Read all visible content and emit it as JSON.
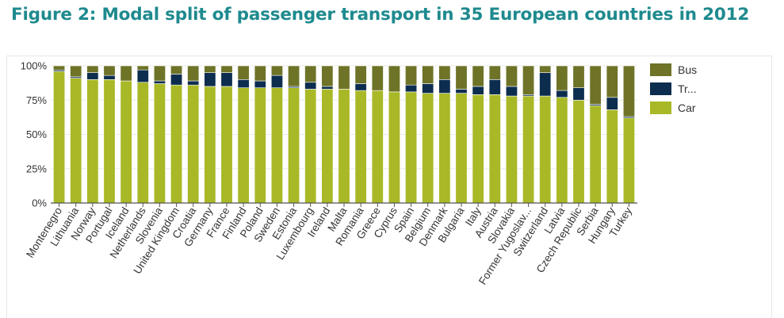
{
  "title": "Figure 2: Modal split of passenger transport in 35 European countries in 2012",
  "chart_data": {
    "type": "bar",
    "stacked": true,
    "categories": [
      "Montenegro",
      "Lithuania",
      "Norway",
      "Portugal",
      "Iceland",
      "Netherlands",
      "Slovenia",
      "United Kingdom",
      "Croatia",
      "Germany",
      "France",
      "Finland",
      "Poland",
      "Sweden",
      "Estonia",
      "Luxembourg",
      "Ireland",
      "Malta",
      "Romania",
      "Greece",
      "Cyprus",
      "Spain",
      "Belgium",
      "Denmark",
      "Bulgaria",
      "Italy",
      "Austria",
      "Slovakia",
      "Former Yugoslav...",
      "Switzerland",
      "Latvia",
      "Czech Republic",
      "Serbia",
      "Hungary",
      "Turkey"
    ],
    "series": [
      {
        "name": "Car",
        "color": "#a9b826",
        "values": [
          96,
          91,
          90,
          90,
          89,
          88,
          87,
          86,
          86,
          85,
          85,
          84,
          84,
          84,
          84,
          83,
          83,
          83,
          82,
          82,
          81,
          81,
          80,
          80,
          80,
          79,
          79,
          78,
          78,
          78,
          77,
          75,
          71,
          68,
          62
        ]
      },
      {
        "name": "Tr...",
        "color": "#0d2d4f",
        "values": [
          1,
          1,
          5,
          3,
          0,
          9,
          2,
          8,
          3,
          10,
          10,
          6,
          5,
          9,
          1,
          5,
          2,
          0,
          5,
          0,
          0,
          5,
          7,
          10,
          3,
          6,
          11,
          7,
          1,
          17,
          5,
          9,
          1,
          9,
          1
        ]
      },
      {
        "name": "Bus",
        "color": "#6e7327",
        "values": [
          3,
          8,
          5,
          7,
          11,
          3,
          11,
          6,
          11,
          5,
          5,
          10,
          11,
          7,
          15,
          12,
          15,
          17,
          13,
          18,
          19,
          14,
          13,
          10,
          17,
          15,
          10,
          15,
          21,
          5,
          18,
          16,
          28,
          23,
          37
        ]
      }
    ],
    "yticks": [
      "100%",
      "75%",
      "50%",
      "25%",
      "0%"
    ],
    "ylim": [
      0,
      100
    ],
    "legend": {
      "position": "right",
      "items": [
        "Bus",
        "Tr...",
        "Car"
      ]
    }
  }
}
